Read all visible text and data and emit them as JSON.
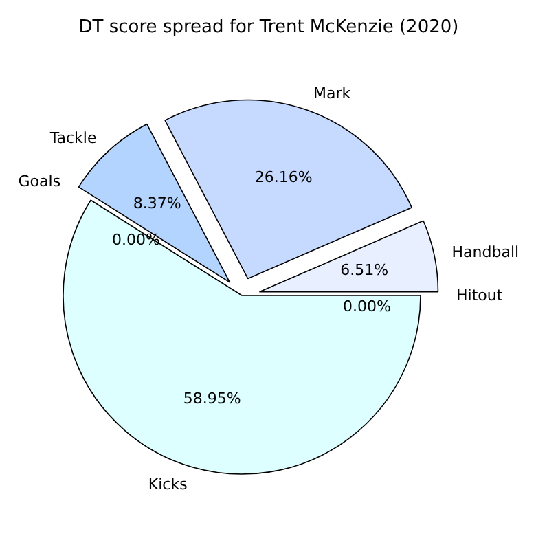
{
  "chart_data": {
    "type": "pie",
    "title": "DT score spread for Trent McKenzie (2020)",
    "categories": [
      "Hitout",
      "Handball",
      "Mark",
      "Tackle",
      "Goals",
      "Kicks"
    ],
    "values": [
      0.0,
      6.51,
      26.16,
      8.37,
      0.0,
      58.95
    ],
    "value_labels": [
      "0.00%",
      "6.51%",
      "26.16%",
      "8.37%",
      "0.00%",
      "58.95%"
    ],
    "colors": [
      "#f0f4ff",
      "#e8f0ff",
      "#c6d9ff",
      "#b3d4ff",
      "#a3c8ff",
      "#ddffff"
    ]
  }
}
